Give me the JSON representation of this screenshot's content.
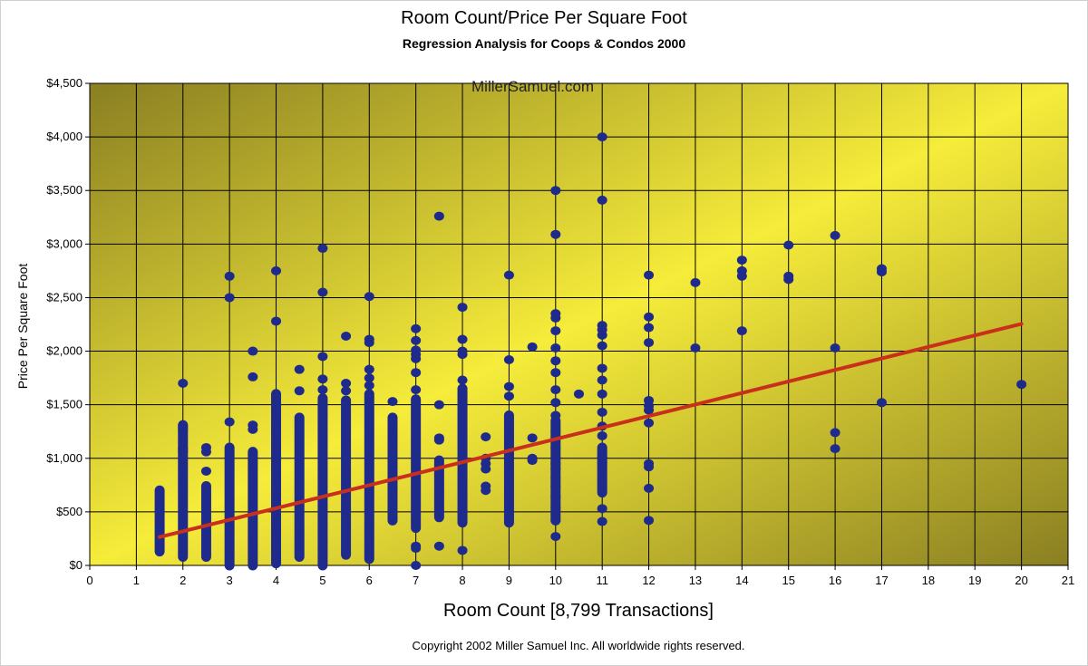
{
  "chart_data": {
    "type": "scatter",
    "title": "Room Count/Price Per Square Foot",
    "subtitle": "Regression Analysis for Coops & Condos 2000",
    "watermark": "MillerSamuel.com",
    "xlabel": "Room Count [8,799 Transactions]",
    "ylabel": "Price Per Square Foot",
    "copyright": "Copyright 2002 Miller Samuel Inc.  All worldwide rights reserved.",
    "xlim": [
      0,
      21
    ],
    "ylim": [
      0,
      4500
    ],
    "grid": true,
    "x_ticks": [
      "0",
      "1",
      "2",
      "3",
      "4",
      "5",
      "6",
      "7",
      "8",
      "9",
      "10",
      "11",
      "12",
      "13",
      "14",
      "15",
      "16",
      "17",
      "18",
      "19",
      "20",
      "21"
    ],
    "y_ticks": [
      "$0",
      "$500",
      "$1,000",
      "$1,500",
      "$2,000",
      "$2,500",
      "$3,000",
      "$3,500",
      "$4,000",
      "$4,500"
    ],
    "background_gradient": [
      "#8a7f22",
      "#f6ec3a",
      "#8a7f22"
    ],
    "point_color": "#1e2a8c",
    "trend_color": "#c8301c",
    "columns": [
      {
        "x": 1.5,
        "lo": 130,
        "hi": 700
      },
      {
        "x": 2,
        "lo": 80,
        "hi": 1310
      },
      {
        "x": 2.5,
        "lo": 80,
        "hi": 740
      },
      {
        "x": 3,
        "lo": 0,
        "hi": 1100
      },
      {
        "x": 3.5,
        "lo": 0,
        "hi": 1060
      },
      {
        "x": 4,
        "lo": 20,
        "hi": 1600
      },
      {
        "x": 4.5,
        "lo": 80,
        "hi": 1380
      },
      {
        "x": 5,
        "lo": 0,
        "hi": 1560
      },
      {
        "x": 5.5,
        "lo": 100,
        "hi": 1540
      },
      {
        "x": 6,
        "lo": 60,
        "hi": 1600
      },
      {
        "x": 6.5,
        "lo": 420,
        "hi": 1380
      },
      {
        "x": 7,
        "lo": 350,
        "hi": 1550
      },
      {
        "x": 7.5,
        "lo": 450,
        "hi": 980
      },
      {
        "x": 8,
        "lo": 400,
        "hi": 1650
      },
      {
        "x": 9,
        "lo": 400,
        "hi": 1400
      },
      {
        "x": 10,
        "lo": 420,
        "hi": 1350
      },
      {
        "x": 11,
        "lo": 680,
        "hi": 1100
      }
    ],
    "points": [
      {
        "x": 2,
        "y": 1700
      },
      {
        "x": 2,
        "y": 1300
      },
      {
        "x": 2,
        "y": 1270
      },
      {
        "x": 2,
        "y": 1090
      },
      {
        "x": 2,
        "y": 1060
      },
      {
        "x": 2.5,
        "y": 1100
      },
      {
        "x": 2.5,
        "y": 1060
      },
      {
        "x": 2.5,
        "y": 880
      },
      {
        "x": 3,
        "y": 2700
      },
      {
        "x": 3,
        "y": 2500
      },
      {
        "x": 3,
        "y": 1340
      },
      {
        "x": 3.5,
        "y": 2000
      },
      {
        "x": 3.5,
        "y": 1760
      },
      {
        "x": 3.5,
        "y": 1310
      },
      {
        "x": 3.5,
        "y": 1270
      },
      {
        "x": 4,
        "y": 2750
      },
      {
        "x": 4,
        "y": 2280
      },
      {
        "x": 4.5,
        "y": 1830
      },
      {
        "x": 4.5,
        "y": 1630
      },
      {
        "x": 5,
        "y": 2960
      },
      {
        "x": 5,
        "y": 2550
      },
      {
        "x": 5,
        "y": 1950
      },
      {
        "x": 5,
        "y": 1740
      },
      {
        "x": 5,
        "y": 1640
      },
      {
        "x": 5.5,
        "y": 2140
      },
      {
        "x": 5.5,
        "y": 1700
      },
      {
        "x": 5.5,
        "y": 1630
      },
      {
        "x": 6,
        "y": 2510
      },
      {
        "x": 6,
        "y": 2110
      },
      {
        "x": 6,
        "y": 2080
      },
      {
        "x": 6,
        "y": 1830
      },
      {
        "x": 6,
        "y": 1750
      },
      {
        "x": 6,
        "y": 1680
      },
      {
        "x": 6.5,
        "y": 1530
      },
      {
        "x": 7,
        "y": 2210
      },
      {
        "x": 7,
        "y": 2100
      },
      {
        "x": 7,
        "y": 2010
      },
      {
        "x": 7,
        "y": 1970
      },
      {
        "x": 7,
        "y": 1930
      },
      {
        "x": 7,
        "y": 1800
      },
      {
        "x": 7,
        "y": 1640
      },
      {
        "x": 7,
        "y": 180
      },
      {
        "x": 7,
        "y": 160
      },
      {
        "x": 7,
        "y": 0
      },
      {
        "x": 7.5,
        "y": 3260
      },
      {
        "x": 7.5,
        "y": 1500
      },
      {
        "x": 7.5,
        "y": 1190
      },
      {
        "x": 7.5,
        "y": 1170
      },
      {
        "x": 7.5,
        "y": 180
      },
      {
        "x": 8,
        "y": 2410
      },
      {
        "x": 8,
        "y": 2110
      },
      {
        "x": 8,
        "y": 2000
      },
      {
        "x": 8,
        "y": 1970
      },
      {
        "x": 8,
        "y": 1730
      },
      {
        "x": 8,
        "y": 140
      },
      {
        "x": 8.5,
        "y": 1200
      },
      {
        "x": 8.5,
        "y": 1000
      },
      {
        "x": 8.5,
        "y": 950
      },
      {
        "x": 8.5,
        "y": 900
      },
      {
        "x": 8.5,
        "y": 740
      },
      {
        "x": 8.5,
        "y": 700
      },
      {
        "x": 9,
        "y": 2710
      },
      {
        "x": 9,
        "y": 1920
      },
      {
        "x": 9,
        "y": 1670
      },
      {
        "x": 9,
        "y": 1580
      },
      {
        "x": 9.5,
        "y": 2040
      },
      {
        "x": 9.5,
        "y": 1190
      },
      {
        "x": 9.5,
        "y": 1000
      },
      {
        "x": 9.5,
        "y": 980
      },
      {
        "x": 10,
        "y": 3500
      },
      {
        "x": 10,
        "y": 3090
      },
      {
        "x": 10,
        "y": 2350
      },
      {
        "x": 10,
        "y": 2310
      },
      {
        "x": 10,
        "y": 2190
      },
      {
        "x": 10,
        "y": 2030
      },
      {
        "x": 10,
        "y": 1910
      },
      {
        "x": 10,
        "y": 1800
      },
      {
        "x": 10,
        "y": 1640
      },
      {
        "x": 10,
        "y": 1520
      },
      {
        "x": 10,
        "y": 1400
      },
      {
        "x": 10,
        "y": 1250
      },
      {
        "x": 10,
        "y": 1200
      },
      {
        "x": 10,
        "y": 1100
      },
      {
        "x": 10,
        "y": 1000
      },
      {
        "x": 10,
        "y": 950
      },
      {
        "x": 10,
        "y": 900
      },
      {
        "x": 10,
        "y": 820
      },
      {
        "x": 10,
        "y": 740
      },
      {
        "x": 10,
        "y": 640
      },
      {
        "x": 10,
        "y": 540
      },
      {
        "x": 10,
        "y": 420
      },
      {
        "x": 10,
        "y": 270
      },
      {
        "x": 10.5,
        "y": 1600
      },
      {
        "x": 11,
        "y": 4000
      },
      {
        "x": 11,
        "y": 3410
      },
      {
        "x": 11,
        "y": 2240
      },
      {
        "x": 11,
        "y": 2200
      },
      {
        "x": 11,
        "y": 2150
      },
      {
        "x": 11,
        "y": 2050
      },
      {
        "x": 11,
        "y": 1840
      },
      {
        "x": 11,
        "y": 1730
      },
      {
        "x": 11,
        "y": 1600
      },
      {
        "x": 11,
        "y": 1430
      },
      {
        "x": 11,
        "y": 1300
      },
      {
        "x": 11,
        "y": 1210
      },
      {
        "x": 11,
        "y": 1010
      },
      {
        "x": 11,
        "y": 960
      },
      {
        "x": 11,
        "y": 530
      },
      {
        "x": 11,
        "y": 410
      },
      {
        "x": 12,
        "y": 2710
      },
      {
        "x": 12,
        "y": 2320
      },
      {
        "x": 12,
        "y": 2220
      },
      {
        "x": 12,
        "y": 2080
      },
      {
        "x": 12,
        "y": 1540
      },
      {
        "x": 12,
        "y": 1490
      },
      {
        "x": 12,
        "y": 1450
      },
      {
        "x": 12,
        "y": 1330
      },
      {
        "x": 12,
        "y": 950
      },
      {
        "x": 12,
        "y": 920
      },
      {
        "x": 12,
        "y": 720
      },
      {
        "x": 12,
        "y": 420
      },
      {
        "x": 13,
        "y": 2640
      },
      {
        "x": 13,
        "y": 2030
      },
      {
        "x": 14,
        "y": 2850
      },
      {
        "x": 14,
        "y": 2750
      },
      {
        "x": 14,
        "y": 2700
      },
      {
        "x": 14,
        "y": 2190
      },
      {
        "x": 15,
        "y": 2990
      },
      {
        "x": 15,
        "y": 2700
      },
      {
        "x": 15,
        "y": 2670
      },
      {
        "x": 16,
        "y": 3080
      },
      {
        "x": 16,
        "y": 2030
      },
      {
        "x": 16,
        "y": 1240
      },
      {
        "x": 16,
        "y": 1090
      },
      {
        "x": 17,
        "y": 2770
      },
      {
        "x": 17,
        "y": 2740
      },
      {
        "x": 17,
        "y": 1520
      },
      {
        "x": 20,
        "y": 1690
      }
    ],
    "trendline": {
      "x": [
        1.5,
        20
      ],
      "y": [
        265,
        2255
      ]
    }
  }
}
